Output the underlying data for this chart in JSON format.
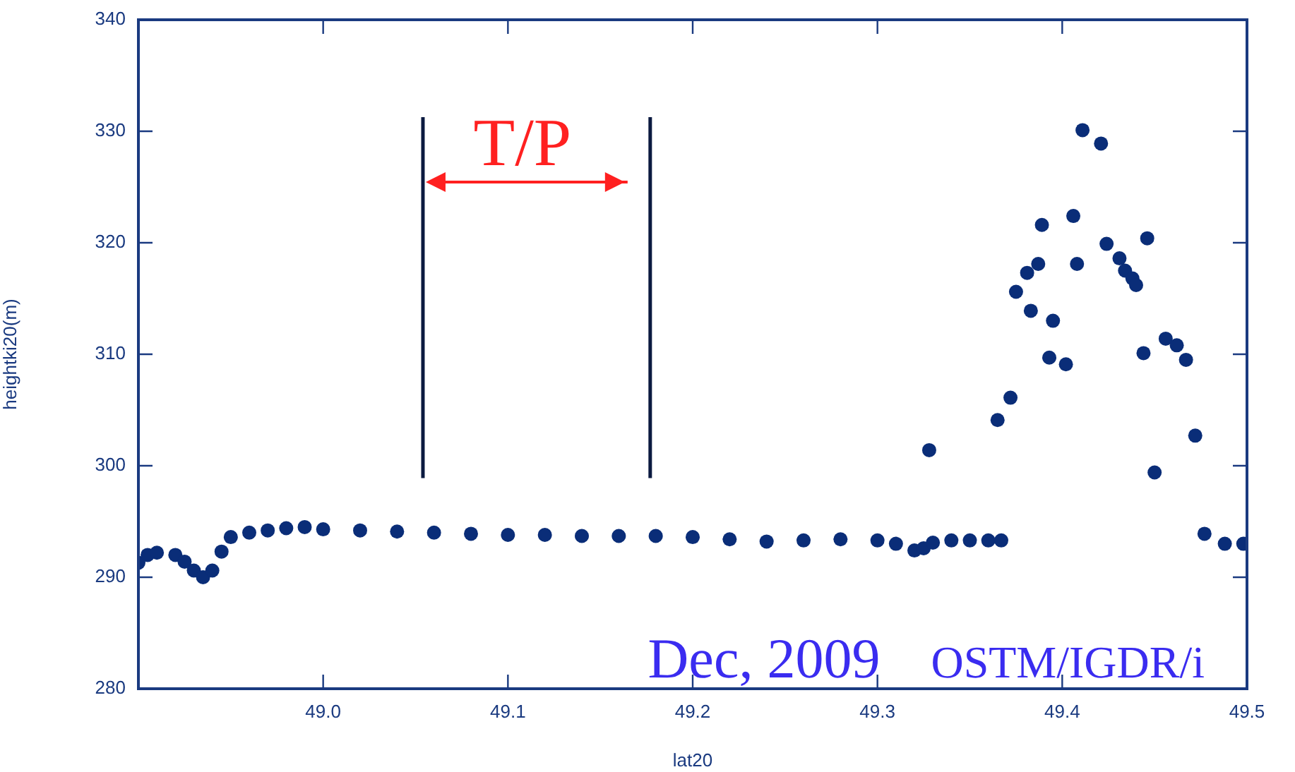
{
  "chart_data": {
    "type": "scatter",
    "xlabel": "lat20",
    "ylabel": "heightki20(m)",
    "xlim": [
      48.9,
      49.5
    ],
    "xticks": [
      {
        "value": 49,
        "label": "49.0"
      },
      {
        "value": 49.1,
        "label": "49.1"
      },
      {
        "value": 49.2,
        "label": "49.2"
      },
      {
        "value": 49.3,
        "label": "49.3"
      },
      {
        "value": 49.4,
        "label": "49.4"
      },
      {
        "value": 49.5,
        "label": "49.5"
      }
    ],
    "ylim": [
      280,
      340
    ],
    "yticks": [
      280,
      290,
      300,
      310,
      320,
      330,
      340
    ],
    "grid": false,
    "legend": false,
    "marker": "circle",
    "ref_lines": [
      {
        "axis": "x",
        "value": 49.054,
        "color": "#0b1a40"
      },
      {
        "axis": "x",
        "value": 49.177,
        "color": "#0b1a40"
      }
    ],
    "annotations": [
      "T/P",
      "Dec, 2009",
      "OSTM/IGDR/i"
    ],
    "series": [
      {
        "color": "#0a2d78",
        "x": [
          48.9,
          48.905,
          48.91,
          48.92,
          48.925,
          48.93,
          48.935,
          48.94,
          48.945,
          48.95,
          48.96,
          48.97,
          48.98,
          48.99,
          49.0,
          49.02,
          49.04,
          49.06,
          49.08,
          49.1,
          49.12,
          49.14,
          49.16,
          49.18,
          49.2,
          49.22,
          49.24,
          49.26,
          49.28,
          49.3,
          49.31,
          49.32,
          49.325,
          49.33,
          49.34,
          49.35,
          49.36,
          49.367,
          49.328,
          49.365,
          49.372,
          49.375,
          49.381,
          49.387,
          49.389,
          49.383,
          49.395,
          49.393,
          49.402,
          49.406,
          49.408,
          49.411,
          49.421,
          49.424,
          49.431,
          49.434,
          49.438,
          49.44,
          49.446,
          49.444,
          49.456,
          49.462,
          49.467,
          49.45,
          49.472,
          49.477,
          49.488,
          49.498
        ],
        "values": [
          291.3,
          292,
          292.2,
          292,
          291.4,
          290.6,
          290,
          290.6,
          292.3,
          293.6,
          294,
          294.2,
          294.4,
          294.5,
          294.3,
          294.2,
          294.1,
          294,
          293.9,
          293.8,
          293.8,
          293.7,
          293.7,
          293.7,
          293.6,
          293.4,
          293.2,
          293.3,
          293.4,
          293.3,
          293,
          292.4,
          292.6,
          293.1,
          293.3,
          293.3,
          293.3,
          293.3,
          301.4,
          304.1,
          306.1,
          315.6,
          317.3,
          318.1,
          321.6,
          313.9,
          313,
          309.7,
          309.1,
          322.4,
          318.1,
          330.1,
          328.9,
          319.9,
          318.6,
          317.5,
          316.8,
          316.2,
          320.4,
          310.1,
          311.4,
          310.8,
          309.5,
          299.4,
          302.7,
          293.9,
          293,
          293
        ]
      }
    ]
  }
}
